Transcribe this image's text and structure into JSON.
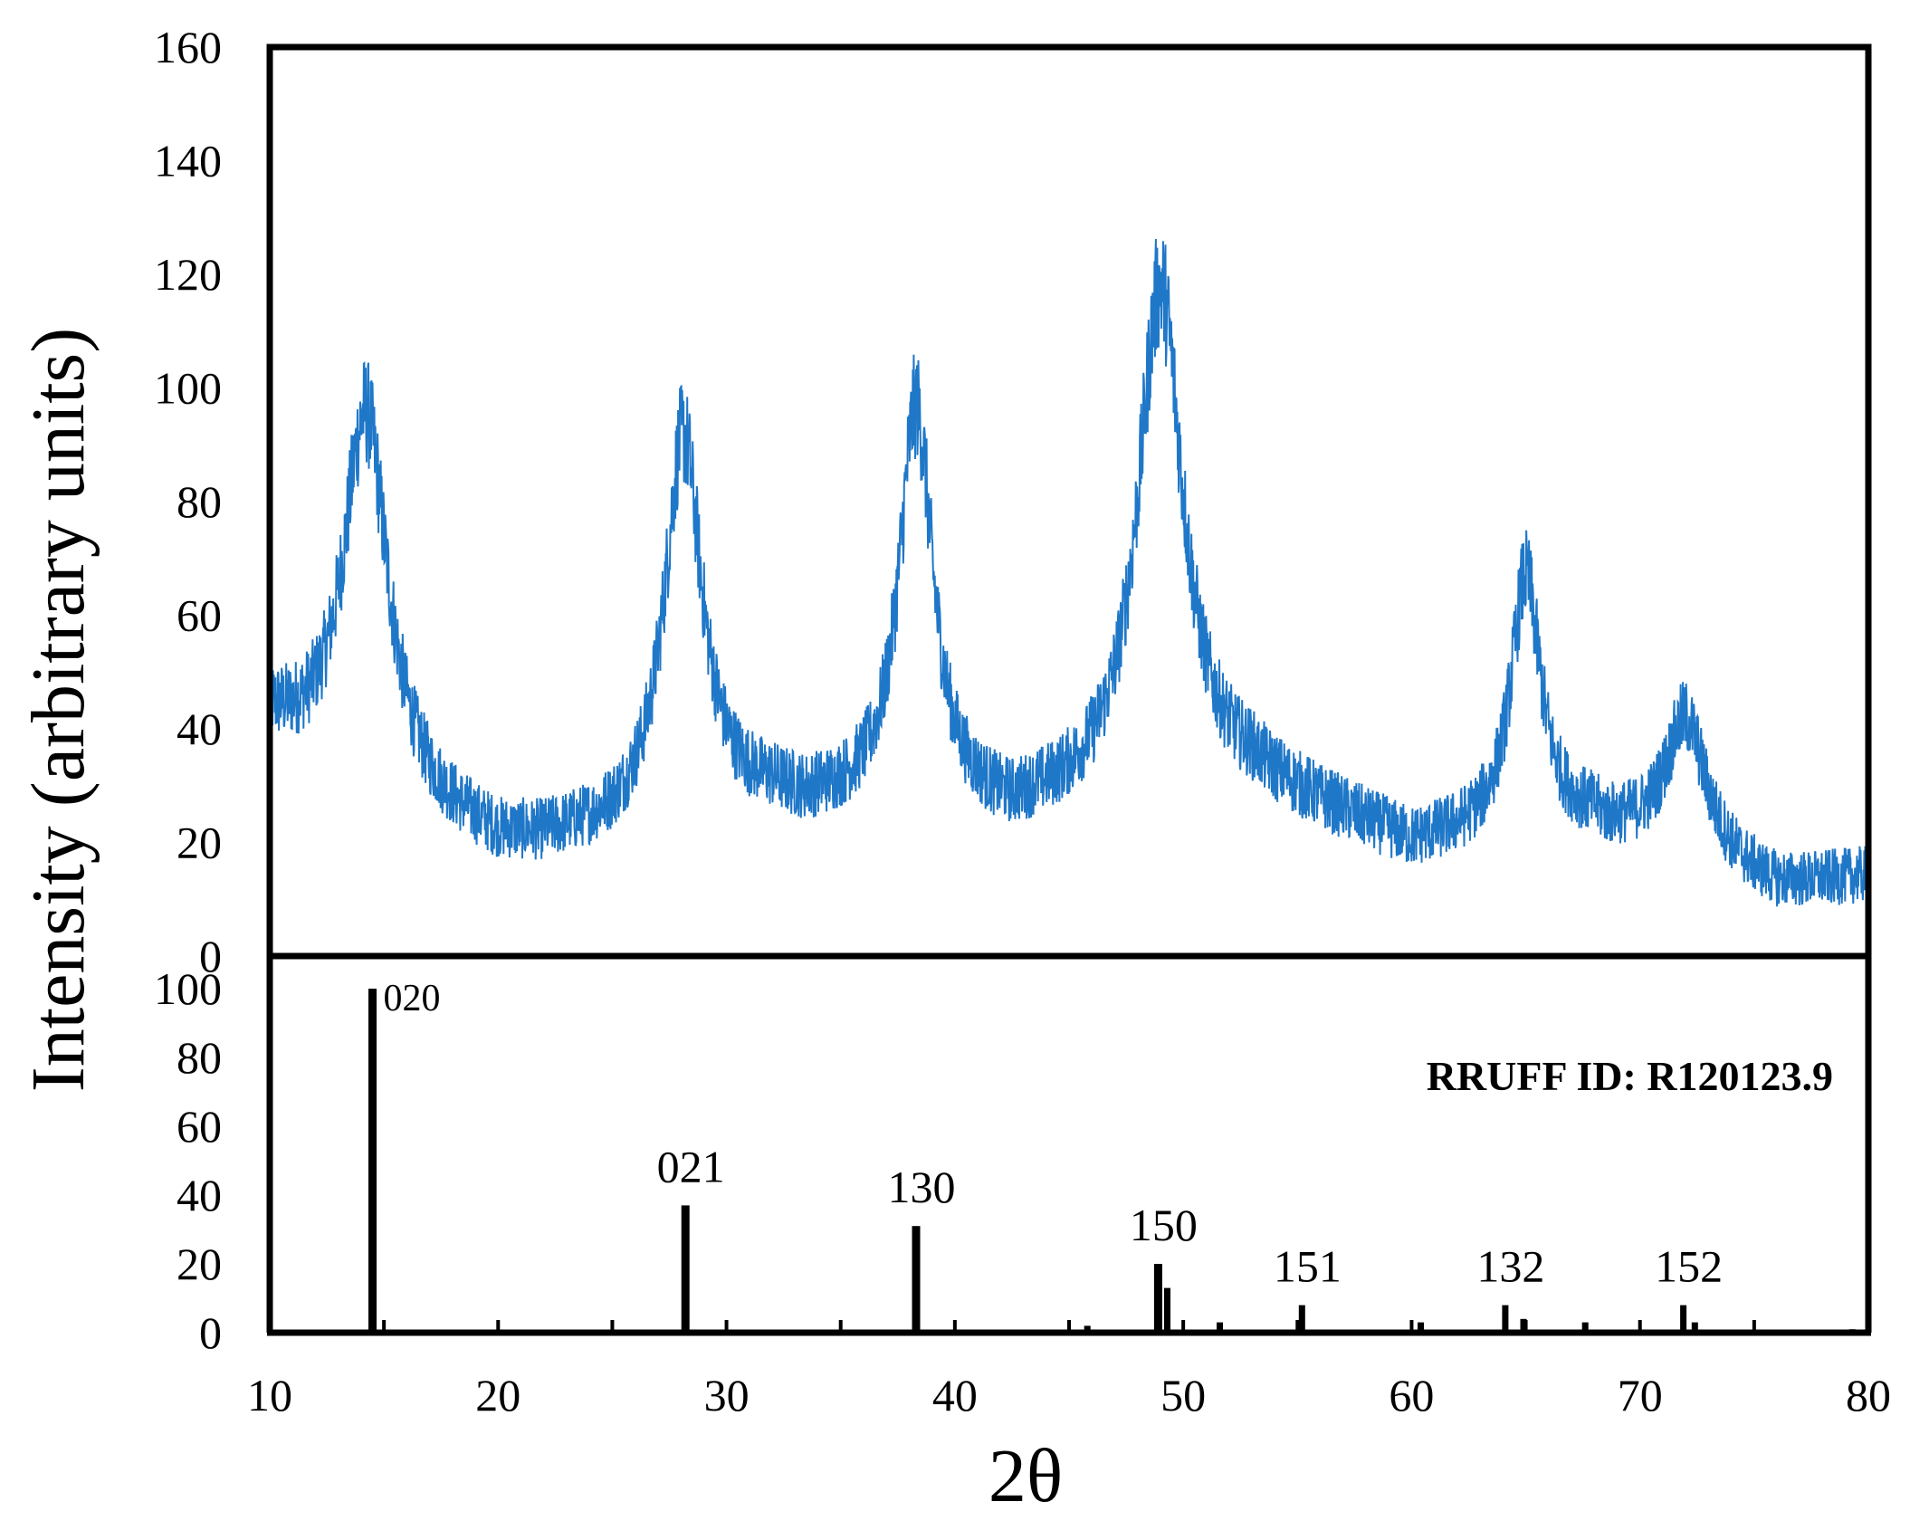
{
  "chart_data": [
    {
      "type": "line",
      "ylabel": "Intensity (arbitrary units)",
      "xlabel": "",
      "xlim": [
        10,
        80
      ],
      "ylim": [
        0,
        160
      ],
      "yticks": [
        "0",
        "20",
        "40",
        "60",
        "80",
        "100",
        "120",
        "140",
        "160"
      ],
      "series": [
        {
          "color": "#1f77c8",
          "peaks": [
            {
              "x": 14.2,
              "height": 96,
              "width": 2.4
            },
            {
              "x": 28.1,
              "height": 92,
              "width": 2.0
            },
            {
              "x": 38.3,
              "height": 97,
              "width": 1.8
            },
            {
              "x": 49.0,
              "height": 118,
              "width": 2.4
            },
            {
              "x": 65.0,
              "height": 67,
              "width": 1.6
            },
            {
              "x": 72.0,
              "height": 42,
              "width": 2.2
            }
          ],
          "background": [
            {
              "x": 10,
              "y": 40
            },
            {
              "x": 14,
              "y": 28
            },
            {
              "x": 20,
              "y": 20
            },
            {
              "x": 25,
              "y": 22
            },
            {
              "x": 32,
              "y": 28
            },
            {
              "x": 42,
              "y": 26
            },
            {
              "x": 53,
              "y": 30
            },
            {
              "x": 60,
              "y": 20
            },
            {
              "x": 68,
              "y": 24
            },
            {
              "x": 76,
              "y": 12
            },
            {
              "x": 80,
              "y": 14
            }
          ],
          "noise_amplitude": 7
        }
      ]
    },
    {
      "type": "bar",
      "xlabel": "2θ",
      "xlim": [
        10,
        80
      ],
      "ylim": [
        0,
        100
      ],
      "yticks": [
        "0",
        "20",
        "40",
        "60",
        "80",
        "100"
      ],
      "xticks": [
        "10",
        "20",
        "30",
        "40",
        "50",
        "60",
        "70",
        "80"
      ],
      "annotation": "RRUFF ID: R120123.9",
      "peaks": [
        {
          "x": 14.5,
          "y": 100,
          "label": "020"
        },
        {
          "x": 28.2,
          "y": 37,
          "label": "021"
        },
        {
          "x": 38.3,
          "y": 31,
          "label": "130"
        },
        {
          "x": 45.8,
          "y": 2
        },
        {
          "x": 48.9,
          "y": 20,
          "label": "150"
        },
        {
          "x": 49.3,
          "y": 13
        },
        {
          "x": 51.6,
          "y": 3
        },
        {
          "x": 55.2,
          "y": 8,
          "label": "151"
        },
        {
          "x": 60.4,
          "y": 3
        },
        {
          "x": 64.1,
          "y": 8,
          "label": "132"
        },
        {
          "x": 64.9,
          "y": 4
        },
        {
          "x": 67.6,
          "y": 3
        },
        {
          "x": 71.9,
          "y": 8,
          "label": "152"
        },
        {
          "x": 72.4,
          "y": 3
        },
        {
          "x": 79.3,
          "y": 1
        }
      ]
    }
  ]
}
